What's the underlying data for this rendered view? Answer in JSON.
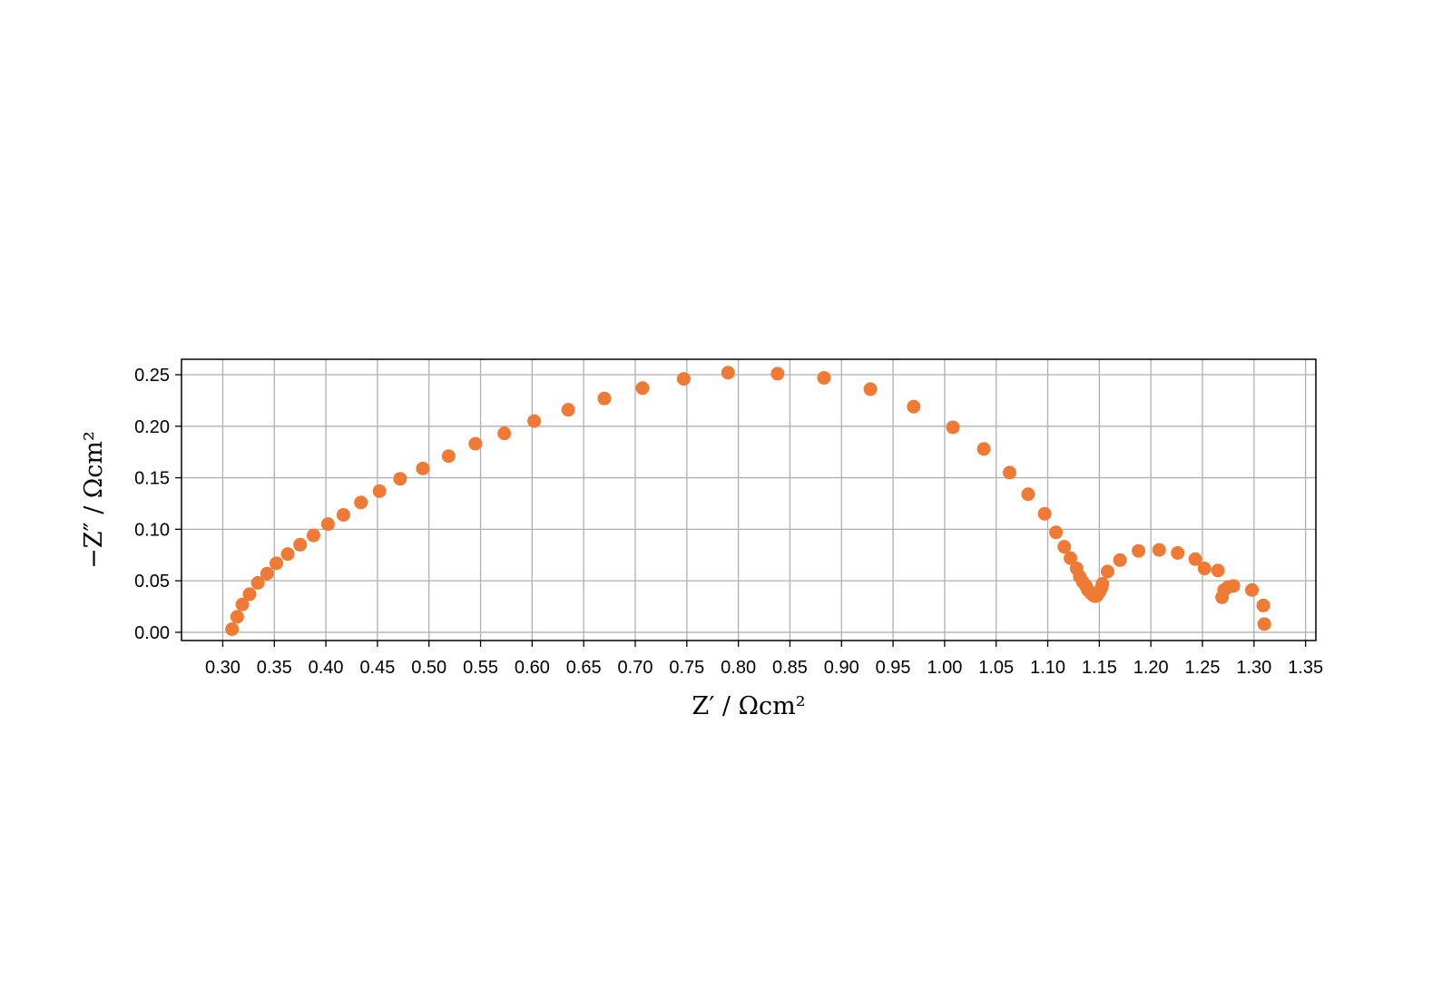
{
  "chart_data": {
    "type": "scatter",
    "title": "",
    "xlabel": "Z′ / Ωcm²",
    "ylabel": "−Z″ / Ωcm²",
    "xlim": [
      0.26,
      1.36
    ],
    "ylim": [
      -0.008,
      0.265
    ],
    "xticks": [
      0.3,
      0.35,
      0.4,
      0.45,
      0.5,
      0.55,
      0.6,
      0.65,
      0.7,
      0.75,
      0.8,
      0.85,
      0.9,
      0.95,
      1.0,
      1.05,
      1.1,
      1.15,
      1.2,
      1.25,
      1.3,
      1.35
    ],
    "xtick_labels": [
      "0.30",
      "0.35",
      "0.40",
      "0.45",
      "0.50",
      "0.55",
      "0.60",
      "0.65",
      "0.70",
      "0.75",
      "0.80",
      "0.85",
      "0.90",
      "0.95",
      "1.00",
      "1.05",
      "1.10",
      "1.15",
      "1.20",
      "1.25",
      "1.30",
      "1.35"
    ],
    "yticks": [
      0.0,
      0.05,
      0.1,
      0.15,
      0.2,
      0.25
    ],
    "ytick_labels": [
      "0.00",
      "0.05",
      "0.10",
      "0.15",
      "0.20",
      "0.25"
    ],
    "grid": true,
    "marker_color": "#ef7a35",
    "series": [
      {
        "x": [
          0.309,
          0.314,
          0.319,
          0.326,
          0.334,
          0.343,
          0.352,
          0.363,
          0.375,
          0.388,
          0.402,
          0.417,
          0.434,
          0.452,
          0.472,
          0.494,
          0.519,
          0.545,
          0.573,
          0.602,
          0.635,
          0.67,
          0.707,
          0.747,
          0.79,
          0.838,
          0.883,
          0.928,
          0.97,
          1.008,
          1.038,
          1.063,
          1.081,
          1.097,
          1.108,
          1.116,
          1.122,
          1.128,
          1.131,
          1.134,
          1.137,
          1.139,
          1.142,
          1.144,
          1.146,
          1.148,
          1.15,
          1.152,
          1.153,
          1.158,
          1.17,
          1.188,
          1.208,
          1.226,
          1.243,
          1.252,
          1.265,
          1.269,
          1.271,
          1.275,
          1.28,
          1.298,
          1.309,
          1.31
        ],
        "y": [
          0.003,
          0.015,
          0.027,
          0.037,
          0.048,
          0.057,
          0.067,
          0.076,
          0.085,
          0.094,
          0.105,
          0.114,
          0.126,
          0.137,
          0.149,
          0.159,
          0.171,
          0.183,
          0.193,
          0.205,
          0.216,
          0.227,
          0.237,
          0.246,
          0.252,
          0.251,
          0.247,
          0.236,
          0.219,
          0.199,
          0.178,
          0.155,
          0.134,
          0.115,
          0.097,
          0.083,
          0.072,
          0.062,
          0.054,
          0.049,
          0.045,
          0.041,
          0.038,
          0.036,
          0.035,
          0.036,
          0.039,
          0.043,
          0.047,
          0.059,
          0.07,
          0.079,
          0.08,
          0.077,
          0.071,
          0.062,
          0.06,
          0.034,
          0.041,
          0.044,
          0.045,
          0.041,
          0.026,
          0.008
        ]
      }
    ]
  }
}
